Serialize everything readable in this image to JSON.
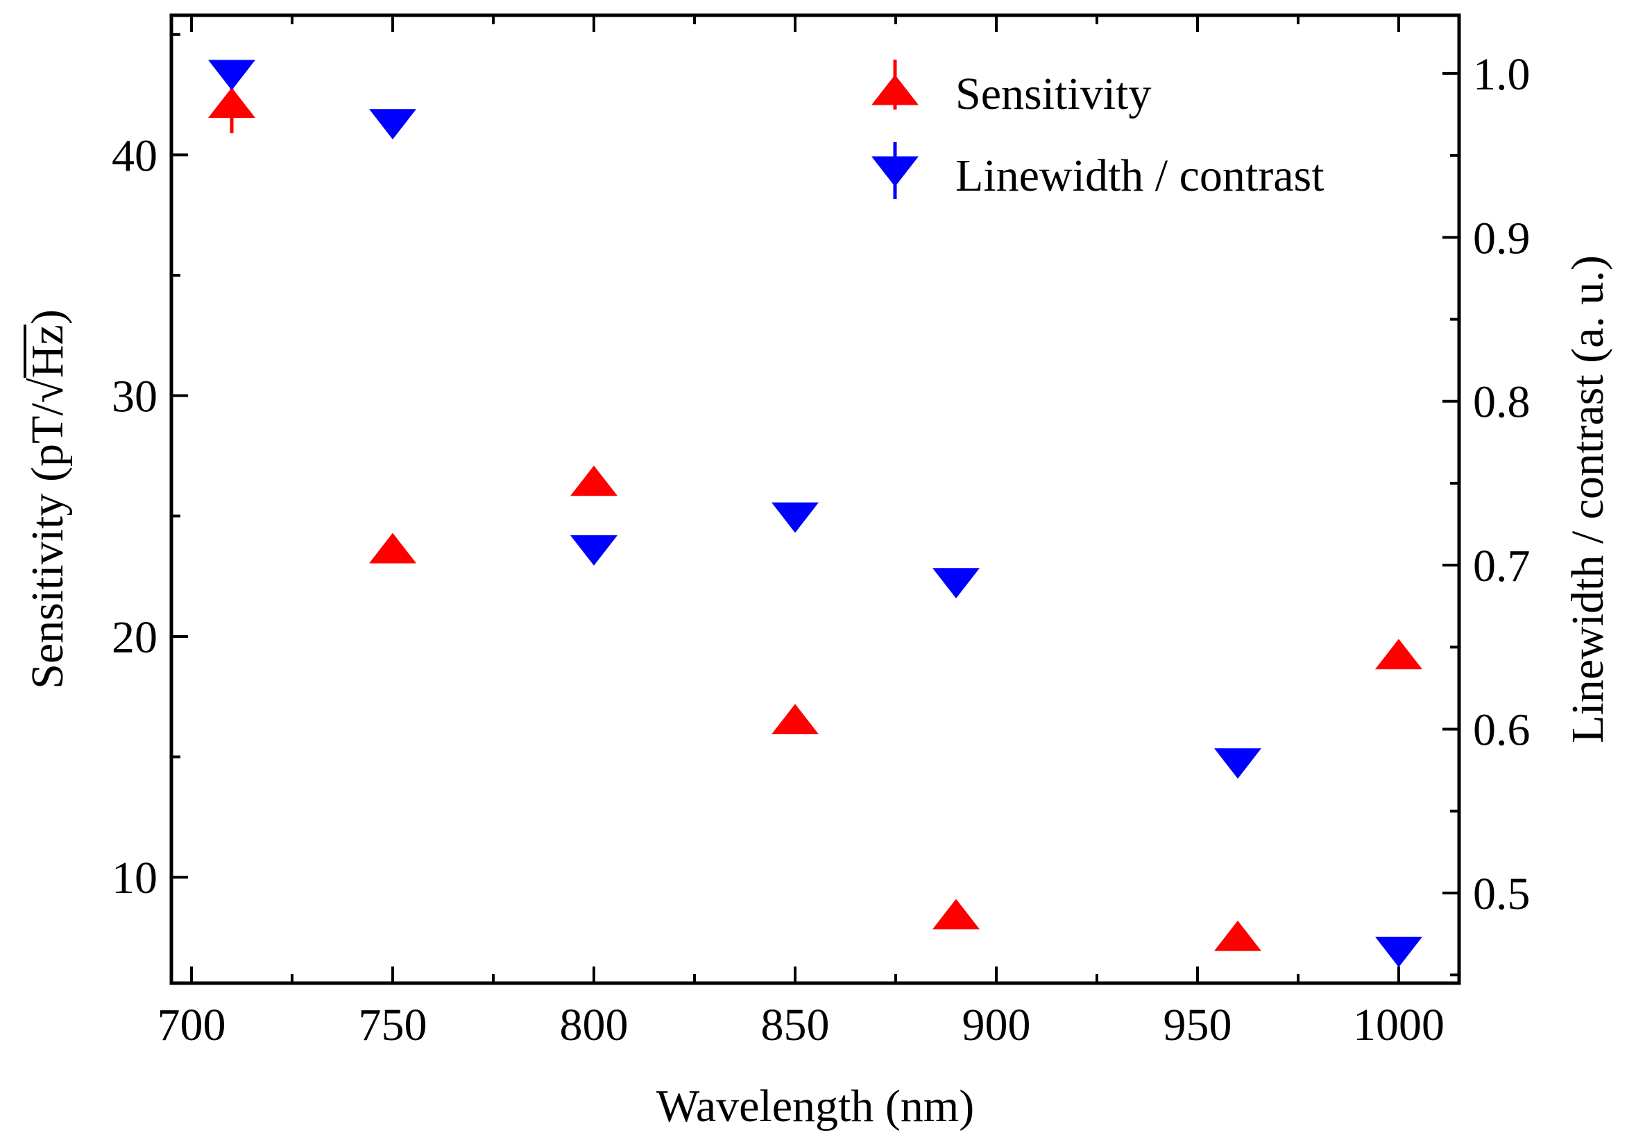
{
  "chart_data": {
    "type": "scatter",
    "x_axis": {
      "label": "Wavelength (nm)",
      "range": [
        695,
        1015
      ],
      "major_ticks": [
        700,
        750,
        800,
        850,
        900,
        950,
        1000
      ],
      "tick_labels": [
        "700",
        "750",
        "800",
        "850",
        "900",
        "950",
        "1000"
      ],
      "minor_step": 25
    },
    "y_left": {
      "label_prefix": "Sensitivity (pT/",
      "label_radical": "√",
      "label_radicand": "Hz",
      "label_suffix": ")",
      "range": [
        5.6,
        45.8
      ],
      "major_ticks": [
        10,
        20,
        30,
        40
      ],
      "tick_labels": [
        "10",
        "20",
        "30",
        "40"
      ],
      "minor_step": 5
    },
    "y_right": {
      "label": "Linewidth / contrast (a. u.)",
      "range": [
        0.445,
        1.0355
      ],
      "major_ticks": [
        0.5,
        0.6,
        0.7,
        0.8,
        0.9,
        1.0
      ],
      "tick_labels": [
        "0.5",
        "0.6",
        "0.7",
        "0.8",
        "0.9",
        "1.0"
      ],
      "minor_step": 0.05
    },
    "series": [
      {
        "name": "Sensitivity",
        "axis": "left",
        "marker": "triangle-up",
        "color": "#ff0000",
        "x": [
          710,
          750,
          800,
          850,
          890,
          960,
          1000
        ],
        "y": [
          42.1,
          23.6,
          26.4,
          16.5,
          8.4,
          7.5,
          19.2
        ],
        "yerr": [
          1.2,
          0.3,
          0.4,
          0.3,
          0.3,
          0.3,
          0.3
        ]
      },
      {
        "name": "Linewidth / contrast",
        "axis": "right",
        "marker": "triangle-down",
        "color": "#0000ff",
        "x": [
          710,
          750,
          800,
          850,
          890,
          960,
          1000
        ],
        "y": [
          1.0,
          0.97,
          0.71,
          0.73,
          0.69,
          0.58,
          0.465
        ],
        "yerr": [
          0.008,
          0.005,
          0.005,
          0.005,
          0.005,
          0.005,
          0.005
        ]
      }
    ],
    "legend": {
      "position": "top-right",
      "entries": [
        "Sensitivity",
        "Linewidth / contrast"
      ]
    }
  }
}
